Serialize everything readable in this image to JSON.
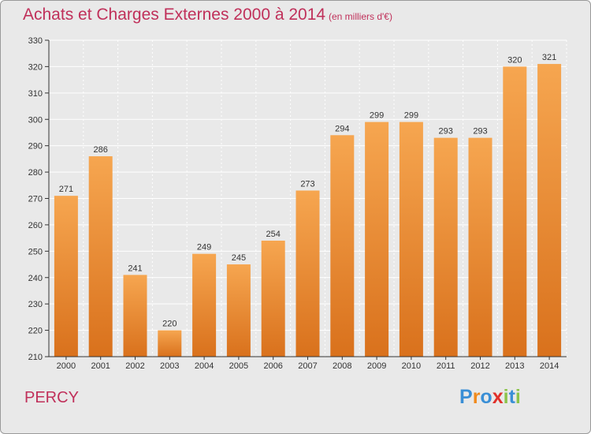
{
  "header": {
    "title": "Achats et Charges Externes 2000 à 2014",
    "subtitle": "(en milliers d'€)"
  },
  "footer": {
    "place": "PERCY",
    "logo": {
      "letters": [
        "P",
        "r",
        "o",
        "x",
        "i",
        "t",
        "i"
      ]
    }
  },
  "colors": {
    "title": "#c0305a",
    "bar_top": "#f6a650",
    "bar_bottom": "#d9711c",
    "grid": "#ffffff",
    "background": "#e9e9e9",
    "logo": [
      "#3a8fd6",
      "#f08a1c",
      "#3a8fd6",
      "#e0302a",
      "#8bc34a",
      "#3a8fd6",
      "#8bc34a"
    ]
  },
  "chart_data": {
    "type": "bar",
    "categories": [
      "2000",
      "2001",
      "2002",
      "2003",
      "2004",
      "2005",
      "2006",
      "2007",
      "2008",
      "2009",
      "2010",
      "2011",
      "2012",
      "2013",
      "2014"
    ],
    "values": [
      271,
      286,
      241,
      220,
      249,
      245,
      254,
      273,
      294,
      299,
      299,
      293,
      293,
      320,
      321
    ],
    "title": "Achats et Charges Externes 2000 à 2014",
    "subtitle": "(en milliers d'€)",
    "xlabel": "",
    "ylabel": "",
    "ylim": [
      210,
      330
    ],
    "yticks": [
      210,
      220,
      230,
      240,
      250,
      260,
      270,
      280,
      290,
      300,
      310,
      320,
      330
    ],
    "grid": true,
    "data_labels": true
  }
}
